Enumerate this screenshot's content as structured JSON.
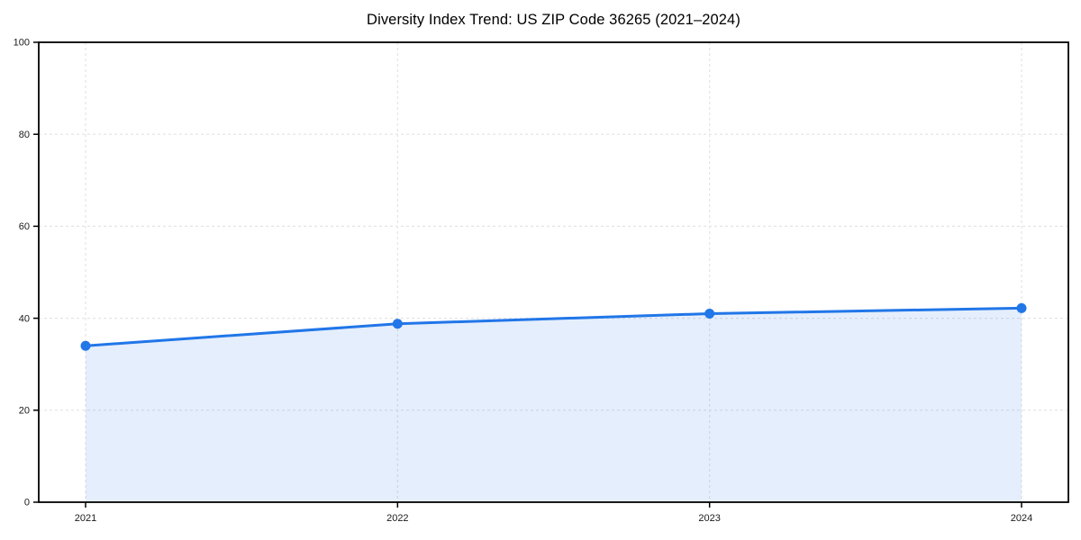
{
  "chart_data": {
    "type": "area",
    "title": "Diversity Index Trend: US ZIP Code 36265 (2021–2024)",
    "x": [
      "2021",
      "2022",
      "2023",
      "2024"
    ],
    "series": [
      {
        "name": "Diversity Index",
        "values": [
          34.0,
          38.8,
          41.0,
          42.2
        ]
      }
    ],
    "xlabel": "",
    "ylabel": "",
    "ylim": [
      0,
      100
    ],
    "yticks": [
      0,
      20,
      40,
      60,
      80,
      100
    ],
    "grid": true,
    "grid_style": "dashed",
    "legend": false,
    "marker": "circle",
    "colors": {
      "line": "#2176E8",
      "fill": "rgba(33,118,232,0.12)",
      "grid": "#e4e4e4",
      "spine": "#000000",
      "tick_label": "#1a1a1a"
    }
  }
}
